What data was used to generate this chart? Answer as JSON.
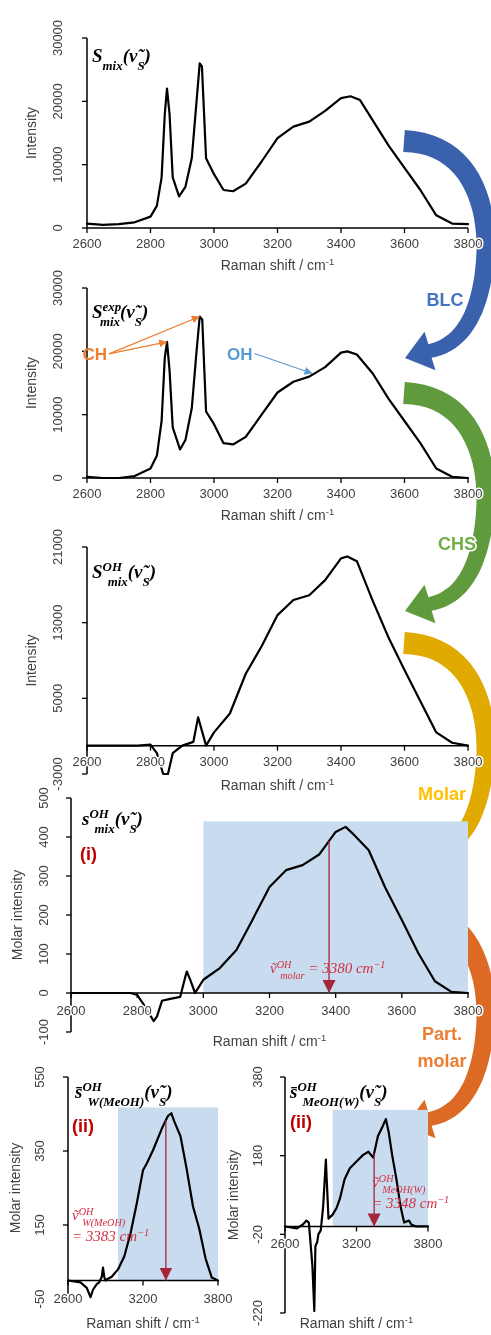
{
  "chart_data": [
    {
      "type": "line",
      "title": "S$_{mix}$(ν̃$_{S}$)",
      "xlabel": "Raman shift / cm$^{-1}$",
      "ylabel": "Intensity",
      "xlim": [
        2600,
        3800
      ],
      "xticks": [
        2600,
        2800,
        3000,
        3200,
        3400,
        3600,
        3800
      ],
      "ylim": [
        0,
        30000
      ],
      "yticks": [
        0,
        10000,
        20000,
        30000
      ],
      "series": [
        {
          "color": "#000000",
          "x": [
            2600,
            2650,
            2700,
            2750,
            2800,
            2820,
            2835,
            2845,
            2852,
            2860,
            2870,
            2890,
            2910,
            2930,
            2945,
            2955,
            2962,
            2975,
            3000,
            3030,
            3060,
            3100,
            3150,
            3200,
            3250,
            3300,
            3350,
            3400,
            3430,
            3460,
            3500,
            3550,
            3600,
            3650,
            3700,
            3750,
            3800
          ],
          "values": [
            700,
            500,
            600,
            900,
            1800,
            3500,
            8000,
            18000,
            22000,
            18000,
            8000,
            5000,
            6500,
            11000,
            20000,
            26000,
            25500,
            11000,
            8500,
            6000,
            5800,
            7000,
            10500,
            14200,
            16000,
            16800,
            18500,
            20500,
            20800,
            20200,
            17000,
            13000,
            9500,
            6000,
            2000,
            700,
            600
          ]
        }
      ]
    },
    {
      "type": "line",
      "title": "S$^{exp}$$_{mix}$(ν̃$_{S}$)",
      "xlabel": "Raman shift / cm$^{-1}$",
      "ylabel": "Intensity",
      "xlim": [
        2600,
        3800
      ],
      "xticks": [
        2600,
        2800,
        3000,
        3200,
        3400,
        3600,
        3800
      ],
      "ylim": [
        0,
        30000
      ],
      "yticks": [
        0,
        10000,
        20000,
        30000
      ],
      "series": [
        {
          "color": "#000000",
          "x": [
            2600,
            2650,
            2700,
            2750,
            2800,
            2820,
            2835,
            2845,
            2852,
            2860,
            2870,
            2893,
            2910,
            2930,
            2945,
            2955,
            2963,
            2975,
            3000,
            3030,
            3060,
            3100,
            3150,
            3200,
            3250,
            3300,
            3350,
            3400,
            3420,
            3450,
            3500,
            3550,
            3600,
            3650,
            3700,
            3750,
            3800
          ],
          "values": [
            200,
            0,
            0,
            300,
            1500,
            3500,
            9000,
            19000,
            21500,
            17000,
            8000,
            4500,
            6000,
            11000,
            20000,
            25500,
            25000,
            10500,
            8500,
            5500,
            5300,
            6500,
            10000,
            13500,
            15200,
            16000,
            17500,
            19800,
            20000,
            19500,
            16500,
            12500,
            9000,
            5500,
            1500,
            200,
            0
          ]
        }
      ],
      "annotations": [
        {
          "text": "CH",
          "x": 2852,
          "y": 21500
        },
        {
          "text": "OH",
          "x": 3310,
          "y": 16500
        },
        "BLC"
      ]
    },
    {
      "type": "line",
      "title": "S$^{OH}$$_{mix}$(ν̃$_{S}$)",
      "xlabel": "Raman shift / cm$^{-1}$",
      "ylabel": "Intensity",
      "xlim": [
        2600,
        3800
      ],
      "xticks": [
        2600,
        2800,
        3000,
        3200,
        3400,
        3600,
        3800
      ],
      "ylim": [
        -3000,
        21000
      ],
      "yticks": [
        -3000,
        5000,
        13000,
        21000
      ],
      "series": [
        {
          "color": "#000000",
          "x": [
            2600,
            2700,
            2760,
            2800,
            2820,
            2840,
            2855,
            2870,
            2900,
            2935,
            2950,
            2960,
            2975,
            3000,
            3050,
            3100,
            3150,
            3200,
            3250,
            3300,
            3350,
            3400,
            3420,
            3450,
            3500,
            3550,
            3600,
            3650,
            3700,
            3750,
            3800
          ],
          "values": [
            0,
            0,
            0,
            100,
            -800,
            -3000,
            -3000,
            -800,
            0,
            400,
            3000,
            1800,
            0,
            1400,
            3400,
            7600,
            10500,
            13800,
            15400,
            15900,
            17500,
            19800,
            20000,
            19500,
            15300,
            11400,
            8000,
            4700,
            1400,
            300,
            0
          ]
        }
      ],
      "annotations": [
        "CHS"
      ]
    },
    {
      "type": "line",
      "title": "s$^{OH}$$_{mix}$(ν̃$_{S}$)",
      "xlabel": "Raman shift / cm$^{-1}$",
      "ylabel": "Molar intensity",
      "xlim": [
        2600,
        3800
      ],
      "xticks": [
        2600,
        2800,
        3000,
        3200,
        3400,
        3600,
        3800
      ],
      "ylim": [
        -100,
        500
      ],
      "yticks": [
        -100,
        0,
        100,
        200,
        300,
        400,
        500
      ],
      "series": [
        {
          "color": "#000000",
          "x": [
            2600,
            2720,
            2780,
            2800,
            2820,
            2850,
            2860,
            2875,
            2900,
            2930,
            2945,
            2950,
            2960,
            2975,
            2990,
            3000,
            3050,
            3100,
            3150,
            3200,
            3250,
            3300,
            3350,
            3400,
            3430,
            3450,
            3500,
            3550,
            3600,
            3650,
            3700,
            3750,
            3800
          ],
          "values": [
            0,
            0,
            0,
            -5,
            -30,
            -72,
            -60,
            -20,
            -15,
            -10,
            40,
            55,
            35,
            0,
            20,
            34,
            64,
            110,
            190,
            272,
            315,
            328,
            355,
            413,
            426,
            410,
            366,
            270,
            187,
            102,
            30,
            3,
            0
          ]
        }
      ],
      "bands": [
        {
          "axis": "x",
          "from": 3000,
          "to": 3800,
          "color": "#c9dcef"
        }
      ],
      "ref_lines": [
        {
          "axis": "x",
          "value": 3380,
          "label": "ṽ$^{OH}$$_{molar}$ = 3380 cm$^{−1}$",
          "color": "#a5253a"
        }
      ],
      "annotations": [
        "(i)",
        "Molar"
      ]
    },
    {
      "type": "line",
      "title": "s̄$^{OH}$$_{W(MeOH)}$(ν̃$_{S}$)",
      "xlabel": "Raman shift / cm$^{-1}$",
      "ylabel": "Molar intensity",
      "xlim": [
        2600,
        3800
      ],
      "xticks": [
        2600,
        3200,
        3800
      ],
      "ylim": [
        -50,
        550
      ],
      "yticks": [
        -50,
        150,
        350,
        550
      ],
      "series": [
        {
          "color": "#000000",
          "x": [
            2600,
            2700,
            2750,
            2780,
            2800,
            2830,
            2850,
            2870,
            2880,
            2890,
            2900,
            2920,
            2950,
            3000,
            3050,
            3100,
            3150,
            3200,
            3230,
            3280,
            3350,
            3400,
            3427,
            3450,
            3500,
            3550,
            3600,
            3650,
            3700,
            3750,
            3800
          ],
          "values": [
            0,
            -5,
            -20,
            -45,
            -25,
            -10,
            -5,
            10,
            35,
            10,
            0,
            5,
            10,
            30,
            65,
            127,
            208,
            298,
            316,
            352,
            410,
            445,
            452,
            430,
            390,
            300,
            200,
            140,
            60,
            8,
            0
          ]
        }
      ],
      "bands": [
        {
          "axis": "x",
          "from": 3000,
          "to": 3800,
          "color": "#c9dcef"
        }
      ],
      "ref_lines": [
        {
          "axis": "x",
          "value": 3383,
          "label": "ṽ$^{OH}$$_{W(MeOH)}$ = 3383 cm$^{−1}$",
          "color": "#a5253a"
        }
      ],
      "annotations": [
        "(ii)"
      ]
    },
    {
      "type": "line",
      "title": "s̄$^{OH}$$_{MeOH(W)}$(ν̃$_{S}$)",
      "xlabel": "Raman shift / cm$^{-1}$",
      "ylabel": "Molar intensity",
      "xlim": [
        2600,
        3800
      ],
      "xticks": [
        2600,
        3200,
        3800
      ],
      "ylim": [
        -220,
        380
      ],
      "yticks": [
        -220,
        -20,
        180,
        380
      ],
      "series": [
        {
          "color": "#000000",
          "x": [
            2600,
            2700,
            2750,
            2780,
            2800,
            2830,
            2846,
            2855,
            2870,
            2880,
            2900,
            2920,
            2943,
            2950,
            2965,
            3000,
            3033,
            3060,
            3100,
            3144,
            3200,
            3256,
            3300,
            3340,
            3380,
            3420,
            3446,
            3470,
            3500,
            3535,
            3570,
            3600,
            3640,
            3660,
            3700,
            3800
          ],
          "values": [
            0,
            -5,
            5,
            15,
            10,
            -100,
            -215,
            -50,
            -40,
            -20,
            -10,
            50,
            170,
            120,
            20,
            30,
            47,
            70,
            120,
            148,
            165,
            182,
            190,
            175,
            230,
            255,
            273,
            240,
            180,
            120,
            50,
            10,
            15,
            5,
            0,
            0
          ]
        }
      ],
      "bands": [
        {
          "axis": "x",
          "from": 3000,
          "to": 3800,
          "color": "#c9dcef"
        }
      ],
      "ref_lines": [
        {
          "axis": "x",
          "value": 3348,
          "label": "ṽ$^{OH}$$_{MeOH(W)}$ = 3348 cm$^{−1}$",
          "color": "#a5253a"
        }
      ],
      "annotations": [
        "(ii)",
        "Part. molar"
      ]
    }
  ]
}
